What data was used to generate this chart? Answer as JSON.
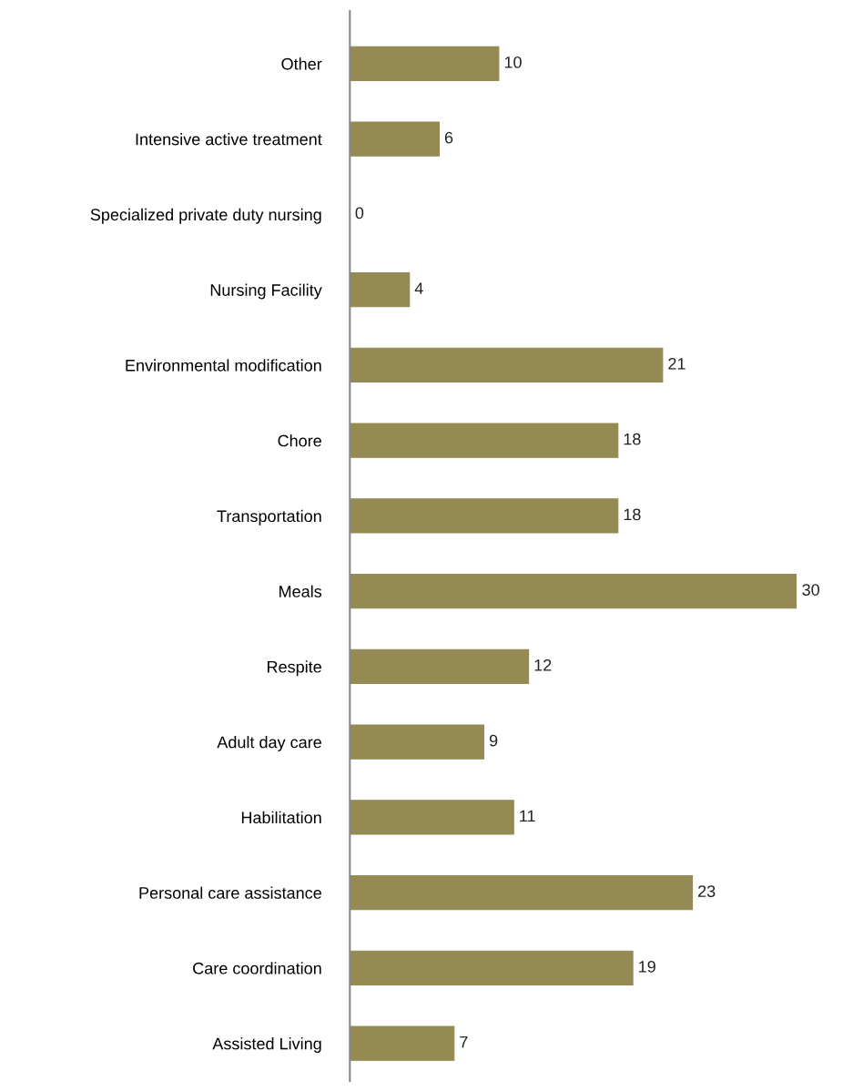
{
  "chart_data": {
    "type": "bar",
    "orientation": "horizontal",
    "categories": [
      "Other",
      "Intensive active treatment",
      "Specialized private duty nursing",
      "Nursing Facility",
      "Environmental modification",
      "Chore",
      "Transportation",
      "Meals",
      "Respite",
      "Adult day care",
      "Habilitation",
      "Personal care assistance",
      "Care coordination",
      "Assisted Living"
    ],
    "values": [
      10,
      6,
      0,
      4,
      21,
      18,
      18,
      30,
      12,
      9,
      11,
      23,
      19,
      7
    ],
    "color": "#948a54",
    "data_labels": true,
    "grid": false,
    "legend": false
  }
}
